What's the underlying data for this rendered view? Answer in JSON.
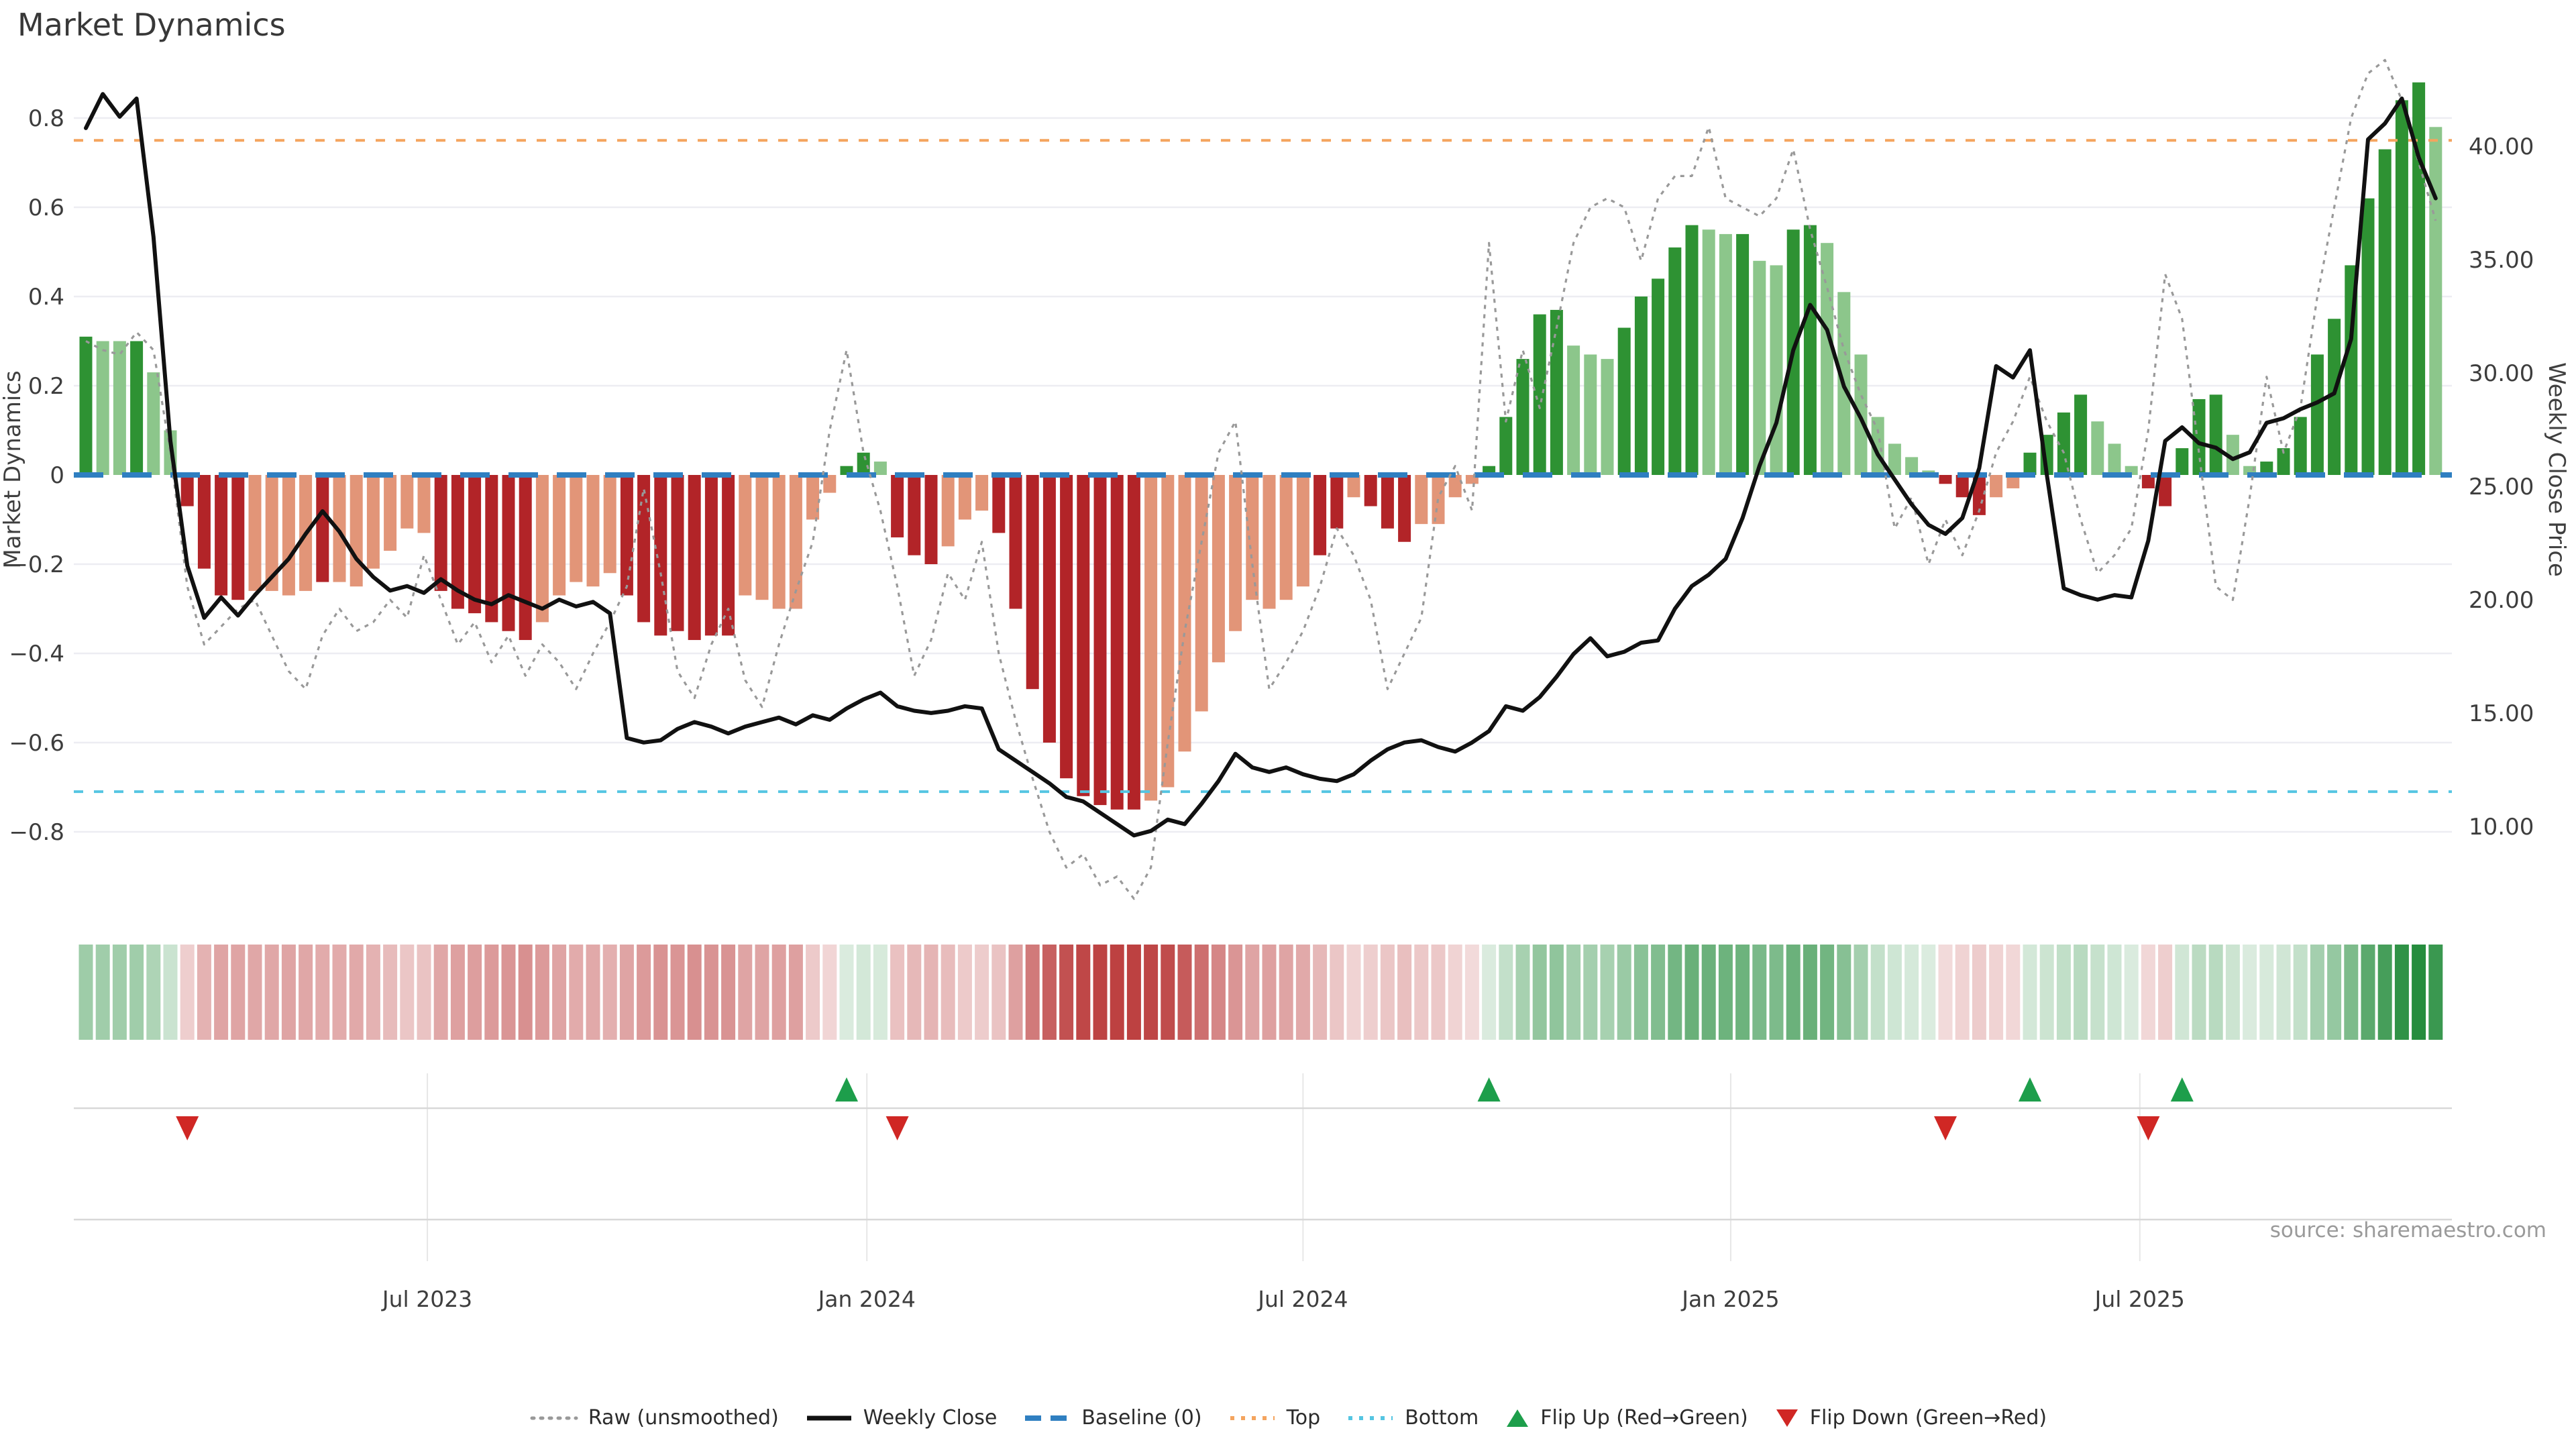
{
  "title": "Market Dynamics",
  "source": "source: sharemaestro.com",
  "axes": {
    "left_label": "Market Dynamics",
    "right_label": "Weekly Close Price",
    "left_ticks": [
      {
        "label": "0.8",
        "value": 0.8
      },
      {
        "label": "0.6",
        "value": 0.6
      },
      {
        "label": "0.4",
        "value": 0.4
      },
      {
        "label": "0.2",
        "value": 0.2
      },
      {
        "label": "0",
        "value": 0
      },
      {
        "label": "−0.2",
        "value": -0.2
      },
      {
        "label": "−0.4",
        "value": -0.4
      },
      {
        "label": "−0.6",
        "value": -0.6
      },
      {
        "label": "−0.8",
        "value": -0.8
      }
    ],
    "right_ticks": [
      {
        "label": "40.00",
        "value": 40
      },
      {
        "label": "35.00",
        "value": 35
      },
      {
        "label": "30.00",
        "value": 30
      },
      {
        "label": "25.00",
        "value": 25
      },
      {
        "label": "20.00",
        "value": 20
      },
      {
        "label": "15.00",
        "value": 15
      },
      {
        "label": "10.00",
        "value": 10
      }
    ],
    "x_ticks": [
      {
        "label": "Jul 2023",
        "week": 21.2
      },
      {
        "label": "Jan 2024",
        "week": 47.2
      },
      {
        "label": "Jul 2024",
        "week": 73.0
      },
      {
        "label": "Jan 2025",
        "week": 98.3
      },
      {
        "label": "Jul 2025",
        "week": 122.5
      }
    ]
  },
  "chart_data": {
    "type": "bar",
    "title": "Market Dynamics",
    "ylabel_left": "Market Dynamics",
    "ylabel_right": "Weekly Close Price",
    "ylim_left": [
      -0.95,
      0.95
    ],
    "ylim_right": [
      7.5,
      44.0
    ],
    "grid": true,
    "baseline": 0,
    "top_threshold": 0.75,
    "bottom_threshold": -0.71,
    "weeks": 140,
    "oscillator": [
      0.31,
      0.3,
      0.3,
      0.3,
      0.23,
      0.1,
      -0.07,
      -0.21,
      -0.27,
      -0.28,
      -0.26,
      -0.26,
      -0.27,
      -0.26,
      -0.24,
      -0.24,
      -0.25,
      -0.21,
      -0.17,
      -0.12,
      -0.13,
      -0.26,
      -0.3,
      -0.31,
      -0.33,
      -0.35,
      -0.37,
      -0.33,
      -0.27,
      -0.24,
      -0.25,
      -0.22,
      -0.27,
      -0.33,
      -0.36,
      -0.35,
      -0.37,
      -0.36,
      -0.36,
      -0.27,
      -0.28,
      -0.3,
      -0.3,
      -0.1,
      -0.04,
      0.02,
      0.05,
      0.03,
      -0.14,
      -0.18,
      -0.2,
      -0.16,
      -0.1,
      -0.08,
      -0.13,
      -0.3,
      -0.48,
      -0.6,
      -0.68,
      -0.72,
      -0.74,
      -0.75,
      -0.75,
      -0.73,
      -0.7,
      -0.62,
      -0.53,
      -0.42,
      -0.35,
      -0.28,
      -0.3,
      -0.28,
      -0.25,
      -0.18,
      -0.12,
      -0.05,
      -0.07,
      -0.12,
      -0.15,
      -0.11,
      -0.11,
      -0.05,
      -0.02,
      0.02,
      0.13,
      0.26,
      0.36,
      0.37,
      0.29,
      0.27,
      0.26,
      0.33,
      0.4,
      0.44,
      0.51,
      0.56,
      0.55,
      0.54,
      0.54,
      0.48,
      0.47,
      0.55,
      0.56,
      0.52,
      0.41,
      0.27,
      0.13,
      0.07,
      0.04,
      0.01,
      -0.02,
      -0.05,
      -0.09,
      -0.05,
      -0.03,
      0.05,
      0.09,
      0.14,
      0.18,
      0.12,
      0.07,
      0.02,
      -0.03,
      -0.07,
      0.06,
      0.17,
      0.18,
      0.09,
      0.02,
      0.03,
      0.06,
      0.13,
      0.27,
      0.35,
      0.47,
      0.62,
      0.73,
      0.84,
      0.88,
      0.78
    ],
    "shade": [
      "d",
      "l",
      "l",
      "d",
      "l",
      "l",
      "d",
      "d",
      "d",
      "d",
      "l",
      "l",
      "l",
      "l",
      "d",
      "l",
      "l",
      "l",
      "l",
      "l",
      "l",
      "d",
      "d",
      "d",
      "d",
      "d",
      "d",
      "l",
      "l",
      "l",
      "l",
      "l",
      "d",
      "d",
      "d",
      "d",
      "d",
      "d",
      "d",
      "l",
      "l",
      "l",
      "l",
      "l",
      "l",
      "d",
      "d",
      "l",
      "d",
      "d",
      "d",
      "l",
      "l",
      "l",
      "d",
      "d",
      "d",
      "d",
      "d",
      "d",
      "d",
      "d",
      "d",
      "l",
      "l",
      "l",
      "l",
      "l",
      "l",
      "l",
      "l",
      "l",
      "l",
      "d",
      "d",
      "l",
      "d",
      "d",
      "d",
      "l",
      "l",
      "l",
      "l",
      "d",
      "d",
      "d",
      "d",
      "d",
      "l",
      "l",
      "l",
      "d",
      "d",
      "d",
      "d",
      "d",
      "l",
      "l",
      "d",
      "l",
      "l",
      "d",
      "d",
      "l",
      "l",
      "l",
      "l",
      "l",
      "l",
      "l",
      "d",
      "d",
      "d",
      "l",
      "l",
      "d",
      "d",
      "d",
      "d",
      "l",
      "l",
      "l",
      "d",
      "d",
      "d",
      "d",
      "d",
      "l",
      "l",
      "d",
      "d",
      "d",
      "d",
      "d",
      "d",
      "d",
      "d",
      "d",
      "d",
      "l"
    ],
    "raw": [
      0.3,
      0.28,
      0.27,
      0.32,
      0.28,
      0.05,
      -0.25,
      -0.38,
      -0.34,
      -0.3,
      -0.28,
      -0.36,
      -0.44,
      -0.48,
      -0.36,
      -0.3,
      -0.35,
      -0.33,
      -0.28,
      -0.32,
      -0.18,
      -0.28,
      -0.38,
      -0.33,
      -0.42,
      -0.36,
      -0.45,
      -0.38,
      -0.42,
      -0.48,
      -0.4,
      -0.33,
      -0.25,
      -0.03,
      -0.22,
      -0.44,
      -0.5,
      -0.38,
      -0.3,
      -0.46,
      -0.52,
      -0.38,
      -0.26,
      -0.15,
      0.1,
      0.28,
      0.05,
      -0.08,
      -0.25,
      -0.45,
      -0.37,
      -0.22,
      -0.28,
      -0.15,
      -0.4,
      -0.55,
      -0.68,
      -0.8,
      -0.88,
      -0.85,
      -0.92,
      -0.9,
      -0.95,
      -0.88,
      -0.6,
      -0.35,
      -0.15,
      0.05,
      0.12,
      -0.2,
      -0.48,
      -0.42,
      -0.35,
      -0.25,
      -0.12,
      -0.18,
      -0.28,
      -0.48,
      -0.4,
      -0.32,
      -0.05,
      0.02,
      -0.08,
      0.52,
      0.12,
      0.28,
      0.15,
      0.33,
      0.52,
      0.6,
      0.62,
      0.6,
      0.48,
      0.62,
      0.67,
      0.67,
      0.78,
      0.62,
      0.6,
      0.58,
      0.62,
      0.73,
      0.55,
      0.42,
      0.28,
      0.18,
      0.1,
      -0.12,
      -0.05,
      -0.2,
      -0.1,
      -0.18,
      -0.08,
      0.05,
      0.12,
      0.22,
      0.12,
      0.05,
      -0.1,
      -0.22,
      -0.18,
      -0.12,
      0.1,
      0.45,
      0.35,
      0.05,
      -0.25,
      -0.28,
      -0.05,
      0.22,
      0.05,
      0.15,
      0.4,
      0.6,
      0.8,
      0.9,
      0.93,
      0.84,
      0.7,
      0.57
    ],
    "price": [
      40.8,
      42.3,
      41.3,
      42.1,
      36.0,
      27.0,
      21.5,
      19.2,
      20.1,
      19.3,
      20.2,
      21.0,
      21.8,
      22.9,
      23.9,
      23.0,
      21.8,
      21.0,
      20.4,
      20.6,
      20.3,
      20.9,
      20.4,
      20.0,
      19.8,
      20.2,
      19.9,
      19.6,
      20.0,
      19.7,
      19.9,
      19.4,
      13.9,
      13.7,
      13.8,
      14.3,
      14.6,
      14.4,
      14.1,
      14.4,
      14.6,
      14.8,
      14.5,
      14.9,
      14.7,
      15.2,
      15.6,
      15.9,
      15.3,
      15.1,
      15.0,
      15.1,
      15.3,
      15.2,
      13.4,
      12.9,
      12.4,
      11.9,
      11.3,
      11.1,
      10.6,
      10.1,
      9.6,
      9.8,
      10.3,
      10.1,
      11.0,
      12.0,
      13.2,
      12.6,
      12.4,
      12.6,
      12.3,
      12.1,
      12.0,
      12.3,
      12.9,
      13.4,
      13.7,
      13.8,
      13.5,
      13.3,
      13.7,
      14.2,
      15.3,
      15.1,
      15.7,
      16.6,
      17.6,
      18.3,
      17.5,
      17.7,
      18.1,
      18.2,
      19.6,
      20.6,
      21.1,
      21.8,
      23.6,
      25.9,
      27.8,
      31.0,
      33.0,
      31.9,
      29.4,
      28.0,
      26.4,
      25.3,
      24.2,
      23.3,
      22.9,
      23.6,
      25.8,
      30.3,
      29.8,
      31.0,
      25.5,
      20.5,
      20.2,
      20.0,
      20.2,
      20.1,
      22.6,
      27.0,
      27.6,
      26.9,
      26.7,
      26.2,
      26.5,
      27.8,
      28.0,
      28.4,
      28.7,
      29.1,
      31.5,
      40.3,
      41.0,
      42.1,
      39.5,
      37.7
    ],
    "flip_up_weeks": [
      46,
      84,
      116,
      125
    ],
    "flip_down_weeks": [
      7,
      49,
      111,
      123
    ]
  },
  "colors": {
    "dark_green": "#2e9233",
    "light_green": "#8cc68b",
    "dark_red": "#b22428",
    "light_red": "#e29578",
    "baseline_blue": "#2f7fc1",
    "top_orange": "#f4a45e",
    "bottom_cyan": "#55c5e2",
    "raw_gray": "#999999",
    "price_black": "#111111",
    "grid": "#ededf2",
    "band_line": "#d8d8d8",
    "flip_up_green": "#1d9e4b",
    "flip_down_red": "#d02724",
    "heat_pos": "34,139,58",
    "heat_neg": "178,34,34"
  },
  "legend": [
    {
      "label": "Raw (unsmoothed)",
      "type": "dotted",
      "color": "#999999"
    },
    {
      "label": "Weekly Close",
      "type": "solid",
      "color": "#111111"
    },
    {
      "label": "Baseline (0)",
      "type": "dashed",
      "color": "#2f7fc1"
    },
    {
      "label": "Top",
      "type": "dotted",
      "color": "#f4a45e"
    },
    {
      "label": "Bottom",
      "type": "dotted",
      "color": "#55c5e2"
    },
    {
      "label": "Flip Up (Red→Green)",
      "type": "triangle-up",
      "color": "#1d9e4b"
    },
    {
      "label": "Flip Down (Green→Red)",
      "type": "triangle-down",
      "color": "#d02724"
    }
  ]
}
